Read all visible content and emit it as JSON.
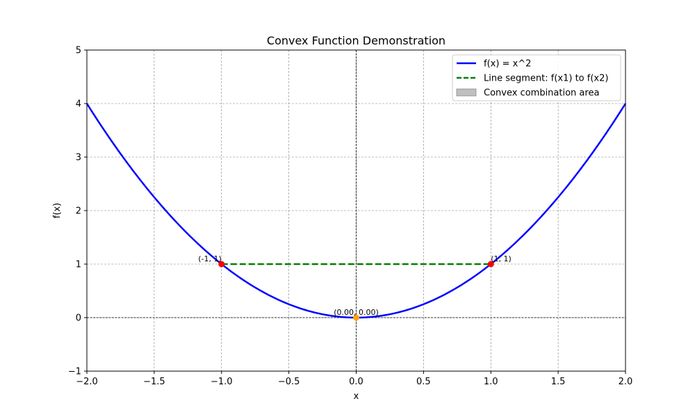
{
  "chart_data": {
    "type": "line",
    "title": "Convex Function Demonstration",
    "xlabel": "x",
    "ylabel": "f(x)",
    "xlim": [
      -2,
      2
    ],
    "ylim": [
      -1,
      5
    ],
    "xticks": [
      -2.0,
      -1.5,
      -1.0,
      -0.5,
      0.0,
      0.5,
      1.0,
      1.5,
      2.0
    ],
    "xtick_labels": [
      "−2.0",
      "−1.5",
      "−1.0",
      "−0.5",
      "0.0",
      "0.5",
      "1.0",
      "1.5",
      "2.0"
    ],
    "yticks": [
      -1,
      0,
      1,
      2,
      3,
      4,
      5
    ],
    "ytick_labels": [
      "−1",
      "0",
      "1",
      "2",
      "3",
      "4",
      "5"
    ],
    "grid": true,
    "legend_position": "top-right",
    "series": [
      {
        "name": "f(x) = x^2",
        "kind": "curve",
        "function": "x^2",
        "x_range": [
          -2,
          2
        ],
        "color": "#0000ff",
        "style": "solid"
      },
      {
        "name": "Line segment: f(x1) to f(x2)",
        "kind": "segment",
        "x": [
          -1,
          1
        ],
        "y": [
          1,
          1
        ],
        "color": "#008000",
        "style": "dashed"
      },
      {
        "name": "Convex combination area",
        "kind": "area",
        "color": "#808080"
      }
    ],
    "points": [
      {
        "x": -1,
        "y": 1,
        "label": "(-1, 1)",
        "color": "#ff0000"
      },
      {
        "x": 1,
        "y": 1,
        "label": "(1, 1)",
        "color": "#ff0000"
      },
      {
        "x": 0,
        "y": 0,
        "label": "(0.00, 0.00)",
        "color": "#ffa500"
      }
    ],
    "reference_lines": [
      {
        "axis": "y",
        "value": 0,
        "style": "dashed",
        "color": "#000000"
      },
      {
        "axis": "x",
        "value": 0,
        "style": "dashed",
        "color": "#000000"
      }
    ]
  }
}
